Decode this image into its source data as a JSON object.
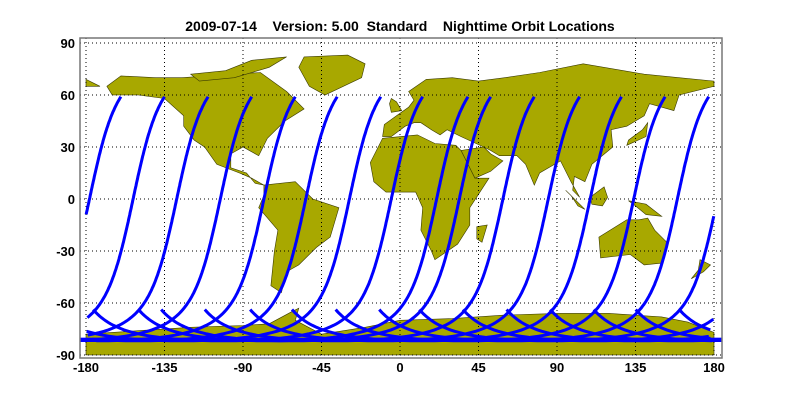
{
  "chart_data": {
    "type": "map",
    "title": "2009-07-14    Version: 5.00  Standard    Nighttime Orbit Locations",
    "xlim": [
      -180,
      180
    ],
    "ylim": [
      -90,
      90
    ],
    "x_ticks": [
      "-180",
      "-135",
      "-90",
      "-45",
      "0",
      "45",
      "90",
      "135",
      "180"
    ],
    "y_ticks": [
      "90",
      "60",
      "30",
      "0",
      "-30",
      "-60",
      "-90"
    ],
    "grid": true,
    "grid_style": "dotted",
    "land_color": "#a8a800",
    "track_color": "#0000ff",
    "orbit_equator_crossing_longitudes": [
      -178,
      -153,
      -128,
      -103,
      -78,
      -54,
      -29,
      -5,
      21,
      34,
      59,
      85,
      109,
      134,
      159
    ],
    "track_max_latitude": 57,
    "track_min_latitude": -82
  }
}
